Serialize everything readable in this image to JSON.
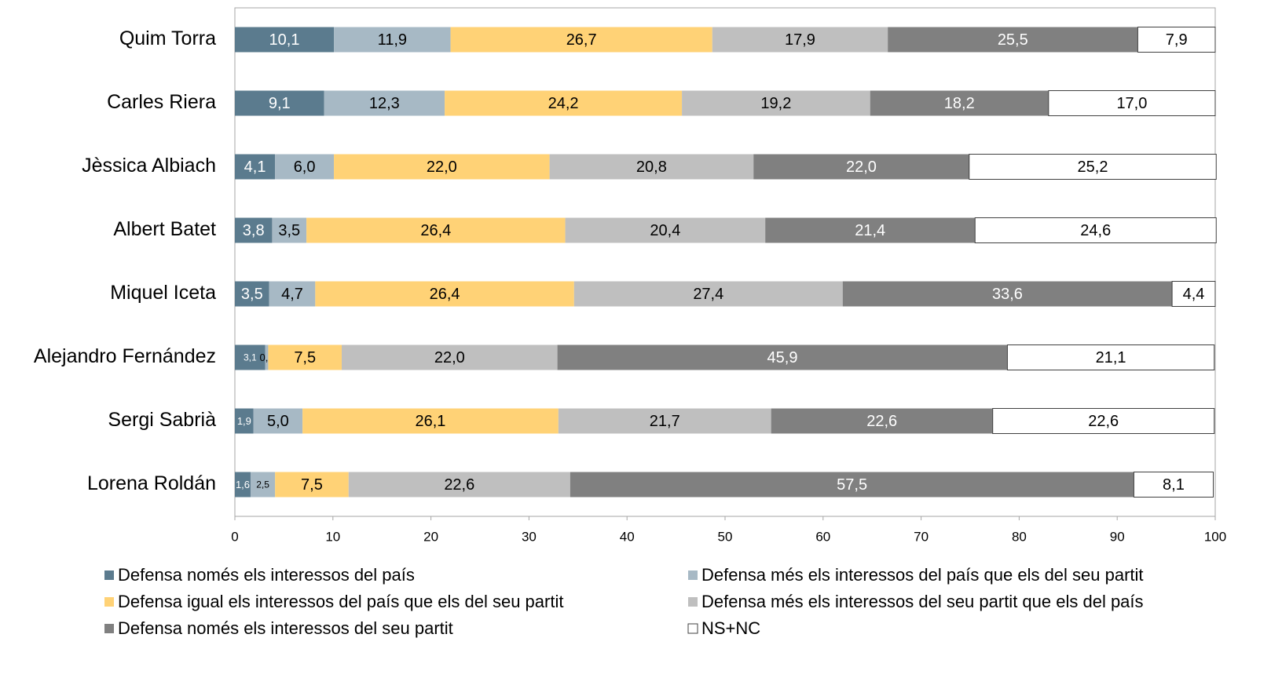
{
  "chart_data": {
    "type": "stacked-barh",
    "categories": [
      "Quim Torra",
      "Carles Riera",
      "Jèssica Albiach",
      "Albert Batet",
      "Miquel Iceta",
      "Alejandro Fernández",
      "Sergi Sabrià",
      "Lorena Roldán"
    ],
    "series": [
      {
        "name": "Defensa només els interessos del país",
        "color": "#5b7b8e",
        "label_color": "#ffffff",
        "values": [
          10.1,
          9.1,
          4.1,
          3.8,
          3.5,
          3.1,
          1.9,
          1.6
        ],
        "value_labels": [
          "10,1",
          "9,1",
          "4,1",
          "3,8",
          "3,5",
          "3,1",
          "1,9",
          "1,6"
        ]
      },
      {
        "name": "Defensa més els interessos del país que els del seu partit",
        "color": "#a7b9c5",
        "label_color": "#000000",
        "values": [
          11.9,
          12.3,
          6.0,
          3.5,
          4.7,
          0.3,
          5.0,
          2.5
        ],
        "value_labels": [
          "11,9",
          "12,3",
          "6,0",
          "3,5",
          "4,7",
          "0,3",
          "5,0",
          "2,5"
        ]
      },
      {
        "name": "Defensa igual els interessos del país que els del seu partit",
        "color": "#ffd276",
        "label_color": "#000000",
        "values": [
          26.7,
          24.2,
          22.0,
          26.4,
          26.4,
          7.5,
          26.1,
          7.5
        ],
        "value_labels": [
          "26,7",
          "24,2",
          "22,0",
          "26,4",
          "26,4",
          "7,5",
          "26,1",
          "7,5"
        ]
      },
      {
        "name": "Defensa més els interessos del seu partit que els del país",
        "color": "#bfbfbf",
        "label_color": "#000000",
        "values": [
          17.9,
          19.2,
          20.8,
          20.4,
          27.4,
          22.0,
          21.7,
          22.6
        ],
        "value_labels": [
          "17,9",
          "19,2",
          "20,8",
          "20,4",
          "27,4",
          "22,0",
          "21,7",
          "22,6"
        ]
      },
      {
        "name": "Defensa només els interessos del seu partit",
        "color": "#808080",
        "label_color": "#ffffff",
        "values": [
          25.5,
          18.2,
          22.0,
          21.4,
          33.6,
          45.9,
          22.6,
          57.5
        ],
        "value_labels": [
          "25,5",
          "18,2",
          "22,0",
          "21,4",
          "33,6",
          "45,9",
          "22,6",
          "57,5"
        ]
      },
      {
        "name": "NS+NC",
        "color": "#ffffff",
        "label_color": "#000000",
        "values": [
          7.9,
          17.0,
          25.2,
          24.6,
          4.4,
          21.1,
          22.6,
          8.1
        ],
        "value_labels": [
          "7,9",
          "17,0",
          "25,2",
          "24,6",
          "4,4",
          "21,1",
          "22,6",
          "8,1"
        ]
      }
    ],
    "xlim": [
      0,
      100
    ],
    "xticks": [
      0,
      10,
      20,
      30,
      40,
      50,
      60,
      70,
      80,
      90,
      100
    ]
  }
}
